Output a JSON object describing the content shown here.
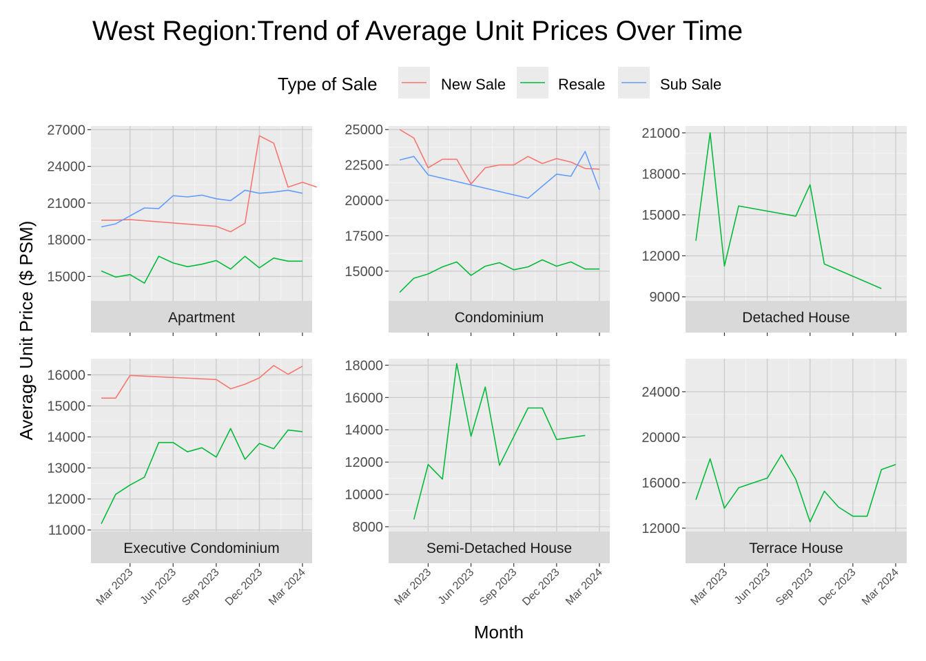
{
  "chart_data": {
    "type": "line",
    "title": "West Region:Trend of Average Unit Prices Over Time",
    "xlabel": "Month",
    "ylabel": "Average Unit Price ($ PSM)",
    "grid": true,
    "legend": {
      "title": "Type of Sale",
      "placement": "top",
      "entries": [
        {
          "name": "New Sale",
          "color": "#F8766D"
        },
        {
          "name": "Resale",
          "color": "#00BA38"
        },
        {
          "name": "Sub Sale",
          "color": "#619CFF"
        }
      ]
    },
    "x_range": [
      "2023-01",
      "2024-03"
    ],
    "x_ticks": [
      "2023-03",
      "2023-06",
      "2023-09",
      "2023-12",
      "2024-03"
    ],
    "x_tick_labels": [
      "Mar 2023",
      "Jun 2023",
      "Sep 2023",
      "Dec 2023",
      "Mar 2024"
    ],
    "panels": [
      {
        "label": "Apartment",
        "ylim": [
          13000,
          27300
        ],
        "y_ticks": [
          15000,
          18000,
          21000,
          24000,
          27000
        ],
        "series": [
          {
            "name": "New Sale",
            "points": [
              [
                "2023-01",
                19600
              ],
              [
                "2023-02",
                19600
              ],
              [
                "2023-03",
                19650
              ],
              [
                "2023-09",
                19100
              ],
              [
                "2023-10",
                18650
              ],
              [
                "2023-11",
                19350
              ],
              [
                "2023-12",
                26500
              ],
              [
                "2024-01",
                25900
              ],
              [
                "2024-02",
                22300
              ],
              [
                "2024-03",
                22700
              ],
              [
                "2024-04",
                22300
              ]
            ]
          },
          {
            "name": "Resale",
            "points": [
              [
                "2023-01",
                15450
              ],
              [
                "2023-02",
                14950
              ],
              [
                "2023-03",
                15150
              ],
              [
                "2023-04",
                14450
              ],
              [
                "2023-05",
                16650
              ],
              [
                "2023-06",
                16100
              ],
              [
                "2023-07",
                15800
              ],
              [
                "2023-08",
                16000
              ],
              [
                "2023-09",
                16300
              ],
              [
                "2023-10",
                15600
              ],
              [
                "2023-11",
                16650
              ],
              [
                "2023-12",
                15700
              ],
              [
                "2024-01",
                16500
              ],
              [
                "2024-02",
                16250
              ],
              [
                "2024-03",
                16250
              ]
            ]
          },
          {
            "name": "Sub Sale",
            "points": [
              [
                "2023-01",
                19050
              ],
              [
                "2023-02",
                19300
              ],
              [
                "2023-03",
                19950
              ],
              [
                "2023-04",
                20600
              ],
              [
                "2023-05",
                20550
              ],
              [
                "2023-06",
                21600
              ],
              [
                "2023-07",
                21500
              ],
              [
                "2023-08",
                21650
              ],
              [
                "2023-09",
                21350
              ],
              [
                "2023-10",
                21200
              ],
              [
                "2023-11",
                22050
              ],
              [
                "2023-12",
                21800
              ],
              [
                "2024-01",
                21900
              ],
              [
                "2024-02",
                22050
              ],
              [
                "2024-03",
                21800
              ]
            ]
          }
        ]
      },
      {
        "label": "Condominium",
        "ylim": [
          12900,
          25250
        ],
        "y_ticks": [
          15000,
          17500,
          20000,
          22500,
          25000
        ],
        "series": [
          {
            "name": "New Sale",
            "points": [
              [
                "2023-01",
                25000
              ],
              [
                "2023-02",
                24400
              ],
              [
                "2023-03",
                22300
              ],
              [
                "2023-04",
                22900
              ],
              [
                "2023-05",
                22900
              ],
              [
                "2023-06",
                21150
              ],
              [
                "2023-07",
                22300
              ],
              [
                "2023-08",
                22500
              ],
              [
                "2023-09",
                22500
              ],
              [
                "2023-10",
                23100
              ],
              [
                "2023-11",
                22600
              ],
              [
                "2023-12",
                22950
              ],
              [
                "2024-01",
                22700
              ],
              [
                "2024-02",
                22250
              ],
              [
                "2024-03",
                22200
              ]
            ]
          },
          {
            "name": "Resale",
            "points": [
              [
                "2023-01",
                13500
              ],
              [
                "2023-02",
                14500
              ],
              [
                "2023-03",
                14800
              ],
              [
                "2023-04",
                15300
              ],
              [
                "2023-05",
                15650
              ],
              [
                "2023-06",
                14700
              ],
              [
                "2023-07",
                15350
              ],
              [
                "2023-08",
                15600
              ],
              [
                "2023-09",
                15100
              ],
              [
                "2023-10",
                15300
              ],
              [
                "2023-11",
                15800
              ],
              [
                "2023-12",
                15350
              ],
              [
                "2024-01",
                15650
              ],
              [
                "2024-02",
                15150
              ],
              [
                "2024-03",
                15150
              ]
            ]
          },
          {
            "name": "Sub Sale",
            "points": [
              [
                "2023-01",
                22850
              ],
              [
                "2023-02",
                23100
              ],
              [
                "2023-03",
                21800
              ],
              [
                "2023-10",
                20150
              ],
              [
                "2023-12",
                21850
              ],
              [
                "2024-01",
                21700
              ],
              [
                "2024-02",
                23450
              ],
              [
                "2024-03",
                20750
              ]
            ]
          }
        ]
      },
      {
        "label": "Detached House",
        "ylim": [
          8700,
          21500
        ],
        "y_ticks": [
          9000,
          12000,
          15000,
          18000,
          21000
        ],
        "series": [
          {
            "name": "Resale",
            "points": [
              [
                "2023-01",
                13100
              ],
              [
                "2023-02",
                21000
              ],
              [
                "2023-03",
                11250
              ],
              [
                "2023-04",
                15650
              ],
              [
                "2023-08",
                14900
              ],
              [
                "2023-09",
                17200
              ],
              [
                "2023-10",
                11400
              ],
              [
                "2024-02",
                9600
              ]
            ]
          }
        ]
      },
      {
        "label": "Executive Condominium",
        "ylim": [
          10950,
          16520
        ],
        "y_ticks": [
          11000,
          12000,
          13000,
          14000,
          15000,
          16000
        ],
        "series": [
          {
            "name": "New Sale",
            "points": [
              [
                "2023-01",
                15250
              ],
              [
                "2023-02",
                15250
              ],
              [
                "2023-03",
                15980
              ],
              [
                "2023-09",
                15850
              ],
              [
                "2023-10",
                15550
              ],
              [
                "2023-11",
                15700
              ],
              [
                "2023-12",
                15900
              ],
              [
                "2024-01",
                16300
              ],
              [
                "2024-02",
                16020
              ],
              [
                "2024-03",
                16280
              ]
            ]
          },
          {
            "name": "Resale",
            "points": [
              [
                "2023-01",
                11200
              ],
              [
                "2023-02",
                12150
              ],
              [
                "2023-03",
                12450
              ],
              [
                "2023-04",
                12700
              ],
              [
                "2023-05",
                13820
              ],
              [
                "2023-06",
                13820
              ],
              [
                "2023-07",
                13520
              ],
              [
                "2023-08",
                13650
              ],
              [
                "2023-09",
                13350
              ],
              [
                "2023-10",
                14270
              ],
              [
                "2023-11",
                13280
              ],
              [
                "2023-12",
                13790
              ],
              [
                "2024-01",
                13620
              ],
              [
                "2024-02",
                14220
              ],
              [
                "2024-03",
                14170
              ]
            ]
          }
        ]
      },
      {
        "label": "Semi-Detached House",
        "ylim": [
          7700,
          18400
        ],
        "y_ticks": [
          8000,
          10000,
          12000,
          14000,
          16000,
          18000
        ],
        "series": [
          {
            "name": "Resale",
            "points": [
              [
                "2023-02",
                8450
              ],
              [
                "2023-03",
                11850
              ],
              [
                "2023-04",
                10950
              ],
              [
                "2023-05",
                18100
              ],
              [
                "2023-06",
                13600
              ],
              [
                "2023-07",
                16650
              ],
              [
                "2023-08",
                11800
              ],
              [
                "2023-10",
                15350
              ],
              [
                "2023-11",
                15350
              ],
              [
                "2023-12",
                13400
              ],
              [
                "2024-02",
                13650
              ]
            ]
          }
        ]
      },
      {
        "label": "Terrace House",
        "ylim": [
          11700,
          26900
        ],
        "y_ticks": [
          12000,
          16000,
          20000,
          24000
        ],
        "series": [
          {
            "name": "Resale",
            "points": [
              [
                "2023-01",
                14500
              ],
              [
                "2023-02",
                18100
              ],
              [
                "2023-03",
                13750
              ],
              [
                "2023-04",
                15550
              ],
              [
                "2023-06",
                16400
              ],
              [
                "2023-07",
                18450
              ],
              [
                "2023-08",
                16300
              ],
              [
                "2023-09",
                12550
              ],
              [
                "2023-10",
                15250
              ],
              [
                "2023-11",
                13850
              ],
              [
                "2023-12",
                13050
              ],
              [
                "2024-01",
                13050
              ],
              [
                "2024-02",
                17150
              ],
              [
                "2024-03",
                17600
              ]
            ]
          }
        ]
      }
    ]
  }
}
